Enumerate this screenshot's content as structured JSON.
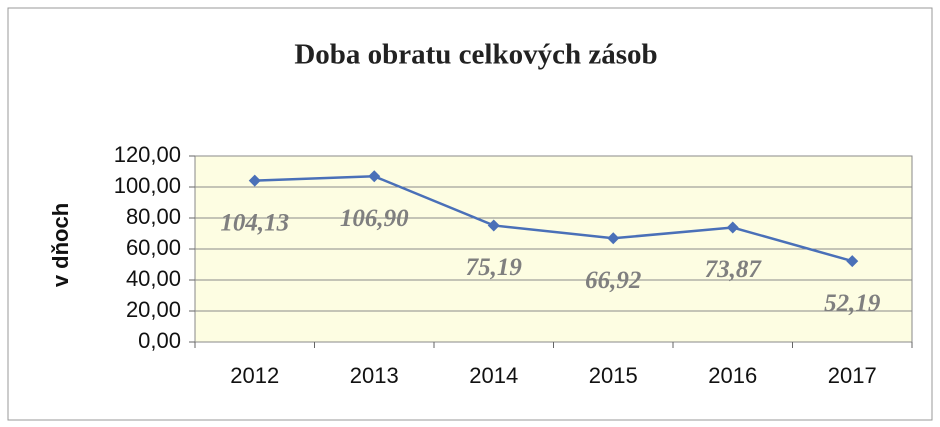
{
  "chart_data": {
    "type": "line",
    "title": "Doba obratu celkových zásob",
    "y_label": "v dňoch",
    "categories": [
      "2012",
      "2013",
      "2014",
      "2015",
      "2016",
      "2017"
    ],
    "series": [
      {
        "name": "Doba obratu celkových zásob",
        "color": "#4a70b8",
        "values": [
          104.13,
          106.9,
          75.19,
          66.92,
          73.87,
          52.19
        ],
        "value_labels": [
          "104,13",
          "106,90",
          "75,19",
          "66,92",
          "73,87",
          "52,19"
        ]
      }
    ],
    "ylim": [
      0,
      120
    ],
    "yticks": [
      {
        "value": 0,
        "label": "0,00"
      },
      {
        "value": 20,
        "label": "20,00"
      },
      {
        "value": 40,
        "label": "40,00"
      },
      {
        "value": 60,
        "label": "60,00"
      },
      {
        "value": 80,
        "label": "80,00"
      },
      {
        "value": 100,
        "label": "100,00"
      },
      {
        "value": 120,
        "label": "120,00"
      }
    ],
    "grid": true
  }
}
